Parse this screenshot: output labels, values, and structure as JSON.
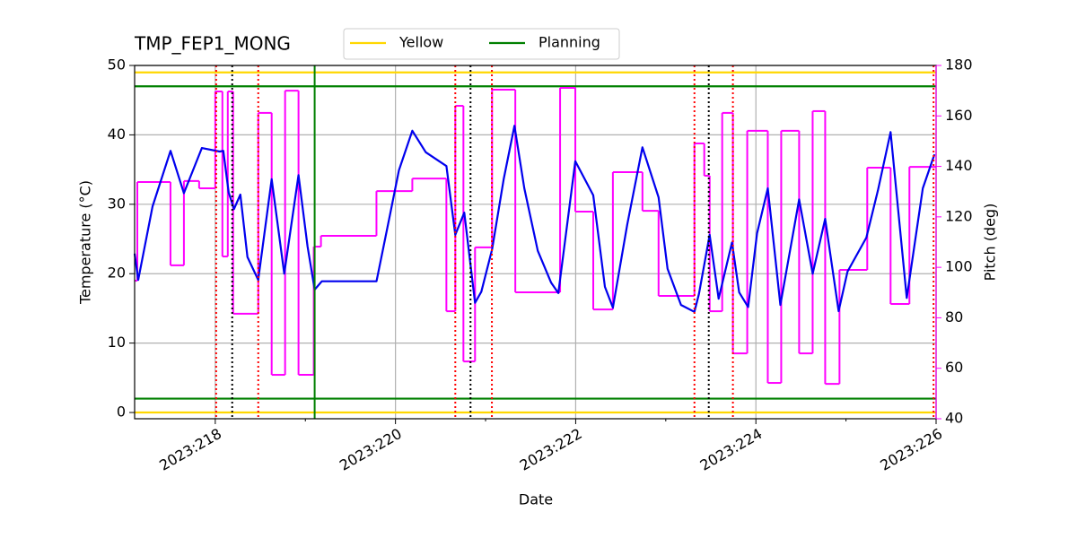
{
  "chart_data": {
    "type": "line",
    "title": "TMP_FEP1_MONG",
    "xlabel": "Date",
    "ylabel": "Temperature (°C)",
    "y2label": "Pitch (deg)",
    "y2color": "#ff00ff",
    "xlim": [
      217.105,
      226
    ],
    "ylim": [
      -0.9,
      50
    ],
    "y2lim": [
      40,
      180
    ],
    "xticks": [
      {
        "value": 218,
        "label": "2023:218"
      },
      {
        "value": 220,
        "label": "2023:220"
      },
      {
        "value": 222,
        "label": "2023:222"
      },
      {
        "value": 224,
        "label": "2023:224"
      },
      {
        "value": 226,
        "label": "2023:226"
      }
    ],
    "xminorticks": [
      219,
      221,
      223,
      225
    ],
    "yticks": [
      0,
      10,
      20,
      30,
      40,
      50
    ],
    "y2ticks": [
      40,
      60,
      80,
      100,
      120,
      140,
      160,
      180
    ],
    "grid": true,
    "legend": "top",
    "temperature": {
      "color": "#0000ee",
      "x": [
        217.105,
        217.145,
        217.304,
        217.503,
        217.652,
        217.851,
        218.049,
        218.089,
        218.149,
        218.208,
        218.278,
        218.357,
        218.477,
        218.626,
        218.765,
        218.924,
        219.024,
        219.103,
        219.183,
        219.789,
        219.938,
        220.038,
        220.187,
        220.336,
        220.565,
        220.664,
        220.764,
        220.883,
        220.953,
        221.072,
        221.201,
        221.32,
        221.43,
        221.579,
        221.728,
        221.807,
        221.996,
        222.195,
        222.324,
        222.413,
        222.572,
        222.741,
        222.92,
        223.02,
        223.169,
        223.318,
        223.368,
        223.487,
        223.586,
        223.735,
        223.815,
        223.914,
        224.013,
        224.132,
        224.272,
        224.48,
        224.63,
        224.769,
        224.918,
        225.017,
        225.226,
        225.355,
        225.495,
        225.674,
        225.853,
        225.982
      ],
      "values": [
        22.9,
        19.1,
        29.7,
        37.7,
        31.6,
        38.1,
        37.6,
        37.7,
        31.7,
        29.3,
        31.4,
        22.4,
        19.1,
        33.6,
        20.0,
        34.2,
        23.9,
        17.7,
        18.9,
        18.9,
        28.4,
        34.9,
        40.6,
        37.5,
        35.5,
        25.6,
        28.8,
        15.8,
        17.4,
        23.5,
        33.6,
        41.3,
        32.3,
        23.3,
        18.7,
        17.2,
        36.2,
        31.3,
        18.1,
        15.1,
        27.1,
        38.2,
        31.0,
        20.7,
        15.5,
        14.5,
        17.1,
        25.6,
        16.4,
        24.5,
        17.3,
        15.2,
        25.8,
        32.3,
        15.5,
        30.7,
        20.0,
        27.9,
        14.6,
        20.3,
        25.2,
        32.0,
        40.4,
        16.5,
        32.3,
        37.2
      ]
    },
    "pitch": {
      "color": "#ff00ff",
      "axis": "y2",
      "drawstyle": "steps-post",
      "x": [
        217.105,
        217.135,
        217.503,
        217.652,
        217.821,
        218.0,
        218.079,
        218.139,
        218.198,
        218.477,
        218.626,
        218.775,
        218.924,
        219.093,
        219.173,
        219.789,
        220.187,
        220.565,
        220.664,
        220.754,
        220.883,
        221.072,
        221.33,
        221.827,
        221.996,
        222.195,
        222.413,
        222.741,
        222.92,
        223.318,
        223.427,
        223.487,
        223.626,
        223.745,
        223.904,
        224.132,
        224.281,
        224.48,
        224.63,
        224.769,
        224.928,
        225.236,
        225.495,
        225.704
      ],
      "values": [
        94.7,
        133.8,
        100.8,
        134.2,
        131.3,
        169.7,
        104.3,
        169.7,
        81.6,
        161.2,
        57.4,
        170.0,
        57.4,
        108.2,
        112.5,
        130.2,
        135.2,
        82.6,
        164.0,
        62.7,
        107.9,
        170.4,
        90.1,
        171.1,
        122.1,
        83.3,
        137.7,
        122.4,
        88.7,
        149.1,
        136.3,
        82.6,
        161.2,
        65.9,
        154.1,
        54.2,
        154.1,
        65.9,
        161.9,
        53.8,
        99.0,
        139.5,
        85.5,
        139.8
      ]
    },
    "limits": [
      {
        "name": "Yellow",
        "color": "#ffd700",
        "values": [
          0,
          49
        ]
      },
      {
        "name": "Planning",
        "color": "#008000",
        "values": [
          2,
          47
        ]
      }
    ],
    "vlines": [
      {
        "color": "#ff0000",
        "style": "dotted",
        "x": [
          218.01,
          218.477,
          220.664,
          221.07,
          223.318,
          223.745,
          225.972
        ]
      },
      {
        "color": "#000000",
        "style": "dotted",
        "x": [
          218.188,
          220.833,
          223.477
        ]
      },
      {
        "color": "#008000",
        "style": "solid",
        "x": [
          219.103
        ]
      }
    ]
  }
}
